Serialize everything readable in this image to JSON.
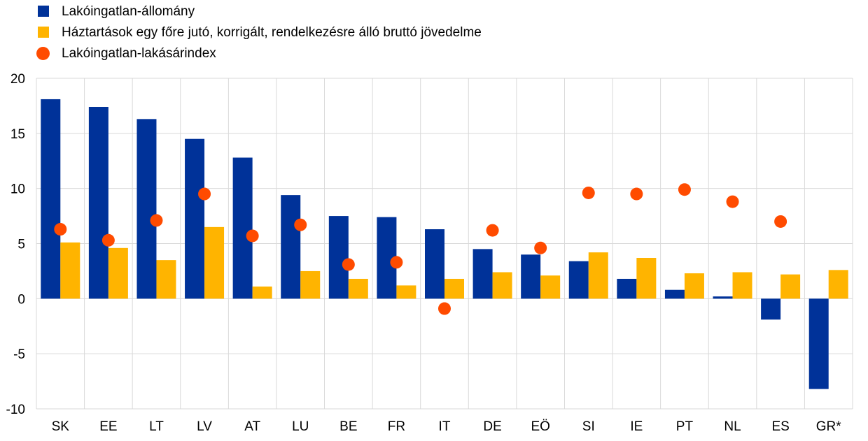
{
  "legend": {
    "items": [
      {
        "label": "Lakóingatlan-állomány",
        "color": "#003299",
        "marker": "square"
      },
      {
        "label": "Háztartások egy főre jutó, korrigált, rendelkezésre álló bruttó jövedelme",
        "color": "#FFB400",
        "marker": "square"
      },
      {
        "label": "Lakóingatlan-lakásárindex",
        "color": "#FF4B00",
        "marker": "circle"
      }
    ]
  },
  "chart_data": {
    "type": "bar",
    "categories": [
      "SK",
      "EE",
      "LT",
      "LV",
      "AT",
      "LU",
      "BE",
      "FR",
      "IT",
      "DE",
      "EÖ",
      "SI",
      "IE",
      "PT",
      "NL",
      "ES",
      "GR*"
    ],
    "series": [
      {
        "name": "Lakóingatlan-állomány",
        "type": "bar",
        "color": "#003299",
        "values": [
          18.1,
          17.4,
          16.3,
          14.5,
          12.8,
          9.4,
          7.5,
          7.4,
          6.3,
          4.5,
          4.0,
          3.4,
          1.8,
          0.8,
          0.2,
          -1.9,
          -8.2
        ]
      },
      {
        "name": "Háztartások egy főre jutó, korrigált, rendelkezésre álló bruttó jövedelme",
        "type": "bar",
        "color": "#FFB400",
        "values": [
          5.1,
          4.6,
          3.5,
          6.5,
          1.1,
          2.5,
          1.8,
          1.2,
          1.8,
          2.4,
          2.1,
          4.2,
          3.7,
          2.3,
          2.4,
          2.2,
          2.6
        ]
      },
      {
        "name": "Lakóingatlan-lakásárindex",
        "type": "scatter",
        "color": "#FF4B00",
        "values": [
          6.3,
          5.3,
          7.1,
          9.5,
          5.7,
          6.7,
          3.1,
          3.3,
          -0.9,
          6.2,
          4.6,
          9.6,
          9.5,
          9.9,
          8.8,
          7.0,
          null
        ]
      }
    ],
    "yticks": [
      "20",
      "15",
      "10",
      "5",
      "0",
      "-5",
      "-10"
    ],
    "ylim": [
      -10,
      20
    ],
    "grid": true,
    "legend_position": "top-left"
  }
}
